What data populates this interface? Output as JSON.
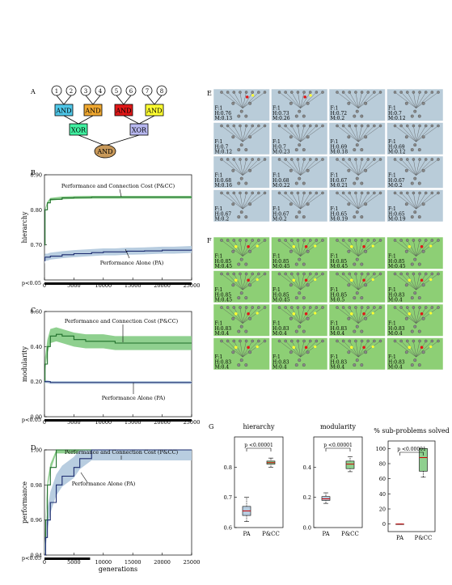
{
  "panels": {
    "A": "A",
    "B": "B",
    "C": "C",
    "D": "D",
    "E": "E",
    "F": "F",
    "G": "G"
  },
  "circuit": {
    "inputs": [
      "1",
      "2",
      "3",
      "4",
      "5",
      "6",
      "7",
      "8"
    ],
    "and_gates": [
      {
        "label": "AND",
        "color": "#4fc7e8"
      },
      {
        "label": "AND",
        "color": "#f0a830"
      },
      {
        "label": "AND",
        "color": "#e01818"
      },
      {
        "label": "AND",
        "color": "#ffff30"
      }
    ],
    "xor_gates": [
      {
        "label": "XOR",
        "color": "#40f0a0"
      },
      {
        "label": "XOR",
        "color": "#b8b8f0"
      }
    ],
    "top_gate": {
      "label": "AND",
      "color": "#c8995a"
    }
  },
  "pval_label": "p<0.05",
  "pval_label_d": "p<0.05",
  "chart_data": [
    {
      "panel": "B",
      "type": "line",
      "ylabel": "hierarchy",
      "ylim": [
        0.6,
        0.9
      ],
      "yticks": [
        "0.90",
        "0.80",
        "0.70"
      ],
      "x": [
        0,
        100,
        500,
        1000,
        3000,
        5000,
        8000,
        10000,
        12000,
        14000,
        15000,
        17000,
        20000,
        22000,
        25000
      ],
      "xticks": [
        "0",
        "5000",
        "10000",
        "15000",
        "20000",
        "25000"
      ],
      "series": [
        {
          "name": "Performance and Connection Cost (P&CC)",
          "color": "#1f6e2a",
          "band": "#8fd08f",
          "values": [
            0.7,
            0.8,
            0.82,
            0.83,
            0.834,
            0.835,
            0.836,
            0.836,
            0.836,
            0.836,
            0.836,
            0.836,
            0.836,
            0.836,
            0.836
          ]
        },
        {
          "name": "Performance Alone (PA)",
          "color": "#1a2a6e",
          "band": "#b8cde0",
          "values": [
            0.655,
            0.665,
            0.665,
            0.668,
            0.672,
            0.675,
            0.678,
            0.68,
            0.68,
            0.682,
            0.682,
            0.683,
            0.685,
            0.685,
            0.687
          ]
        }
      ]
    },
    {
      "panel": "C",
      "type": "line",
      "ylabel": "modularity",
      "ylim": [
        0.0,
        0.6
      ],
      "yticks": [
        "0.60",
        "0.40",
        "0.20",
        "0.00"
      ],
      "x": [
        0,
        100,
        500,
        1000,
        2000,
        3000,
        5000,
        7000,
        10000,
        12000,
        14000,
        15000,
        17000,
        20000,
        25000
      ],
      "xticks": [
        "0",
        "5000",
        "10000",
        "15000",
        "20000",
        "25000"
      ],
      "series": [
        {
          "name": "Performance and Connection Cost (P&CC)",
          "color": "#1f6e2a",
          "band": "#8fd08f",
          "values": [
            0.2,
            0.3,
            0.4,
            0.46,
            0.47,
            0.46,
            0.44,
            0.43,
            0.43,
            0.42,
            0.42,
            0.42,
            0.42,
            0.42,
            0.42
          ]
        },
        {
          "name": "Performance Alone (PA)",
          "color": "#1a2a6e",
          "band": "#b8cde0",
          "values": [
            0.2,
            0.2,
            0.2,
            0.195,
            0.195,
            0.195,
            0.195,
            0.195,
            0.195,
            0.195,
            0.195,
            0.195,
            0.195,
            0.195,
            0.195
          ]
        }
      ]
    },
    {
      "panel": "D",
      "type": "line",
      "xlabel": "generations",
      "ylabel": "performance",
      "ylim": [
        0.94,
        1.0
      ],
      "yticks": [
        "1.00",
        "0.98",
        "0.96",
        "0.94"
      ],
      "x": [
        0,
        200,
        500,
        1000,
        2000,
        3000,
        5000,
        6000,
        8000,
        10000,
        15000,
        20000,
        25000
      ],
      "xticks": [
        "0",
        "5000",
        "10000",
        "15000",
        "20000",
        "25000"
      ],
      "series": [
        {
          "name": "Performance and Connection Cost (P&CC)",
          "color": "#1f6e2a",
          "band": "#8fd08f",
          "values": [
            0.94,
            0.96,
            0.98,
            0.99,
            1.0,
            1.0,
            1.0,
            1.0,
            1.0,
            1.0,
            1.0,
            1.0,
            1.0
          ]
        },
        {
          "name": "Performance Alone (PA)",
          "color": "#1a2a6e",
          "band": "#b8cde0",
          "values": [
            0.94,
            0.95,
            0.96,
            0.97,
            0.98,
            0.985,
            0.99,
            0.995,
            1.0,
            1.0,
            1.0,
            1.0,
            1.0
          ]
        }
      ]
    },
    {
      "panel": "G-hierarchy",
      "type": "box",
      "title": "hierarchy",
      "categories": [
        "PA",
        "P&CC"
      ],
      "ylim": [
        0.6,
        0.9
      ],
      "yticks": [
        "0.8",
        "0.7",
        "0.6"
      ],
      "annotation": "p <0.00001",
      "stats": [
        {
          "median": 0.655,
          "q1": 0.64,
          "q3": 0.67,
          "min": 0.62,
          "max": 0.7
        },
        {
          "median": 0.815,
          "q1": 0.81,
          "q3": 0.82,
          "min": 0.8,
          "max": 0.83
        }
      ]
    },
    {
      "panel": "G-modularity",
      "type": "box",
      "title": "modularity",
      "categories": [
        "PA",
        "P&CC"
      ],
      "ylim": [
        0.0,
        0.6
      ],
      "yticks": [
        "0.4",
        "0.2",
        "0.0"
      ],
      "annotation": "p <0.00001",
      "stats": [
        {
          "median": 0.19,
          "q1": 0.18,
          "q3": 0.205,
          "min": 0.16,
          "max": 0.23
        },
        {
          "median": 0.42,
          "q1": 0.39,
          "q3": 0.44,
          "min": 0.37,
          "max": 0.47
        }
      ]
    },
    {
      "panel": "G-subproblems",
      "type": "box",
      "title": "% sub-problems solved",
      "categories": [
        "PA",
        "P&CC"
      ],
      "ylim": [
        -10,
        110
      ],
      "yticks": [
        "100",
        "80",
        "60",
        "40",
        "20",
        "0"
      ],
      "annotation": "p <0.00001",
      "stats": [
        {
          "median": 0,
          "q1": 0,
          "q3": 0,
          "min": 0,
          "max": 0
        },
        {
          "median": 88,
          "q1": 70,
          "q3": 100,
          "min": 62,
          "max": 100
        }
      ]
    }
  ],
  "grid_E": {
    "bg": "#b9ccd9",
    "cells": [
      [
        "F:1",
        "H:0.76",
        "M:0.13"
      ],
      [
        "F:1",
        "H:0.73",
        "M:0.26"
      ],
      [
        "F:1",
        "H:0.72",
        "M:0.2"
      ],
      [
        "F:1",
        "H:0.7",
        "M:0.12"
      ],
      [
        "F:1",
        "H:0.7",
        "M:0.12"
      ],
      [
        "F:1",
        "H:0.7",
        "M:0.23"
      ],
      [
        "F:1",
        "H:0.69",
        "M:0.18"
      ],
      [
        "F:1",
        "H:0.69",
        "M:0.12"
      ],
      [
        "F:1",
        "H:0.68",
        "M:0.16"
      ],
      [
        "F:1",
        "H:0.68",
        "M:0.22"
      ],
      [
        "F:1",
        "H:0.67",
        "M:0.21"
      ],
      [
        "F:1",
        "H:0.67",
        "M:0.2"
      ],
      [
        "F:1",
        "H:0.67",
        "M:0.2"
      ],
      [
        "F:1",
        "H:0.67",
        "M:0.2"
      ],
      [
        "F:1",
        "H:0.65",
        "M:0.19"
      ],
      [
        "F:1",
        "H:0.65",
        "M:0.19"
      ]
    ]
  },
  "grid_F": {
    "bg": "#8dcf75",
    "cells": [
      [
        "F:1",
        "H:0.85",
        "M:0.45"
      ],
      [
        "F:1",
        "H:0.85",
        "M:0.45"
      ],
      [
        "F:1",
        "H:0.85",
        "M:0.45"
      ],
      [
        "F:1",
        "H:0.85",
        "M:0.45"
      ],
      [
        "F:1",
        "H:0.85",
        "M:0.45"
      ],
      [
        "F:1",
        "H:0.85",
        "M:0.45"
      ],
      [
        "F:1",
        "H:0.85",
        "M:0.5"
      ],
      [
        "F:1",
        "H:0.83",
        "M:0.4"
      ],
      [
        "F:1",
        "H:0.83",
        "M:0.4"
      ],
      [
        "F:1",
        "H:0.83",
        "M:0.4"
      ],
      [
        "F:1",
        "H:0.83",
        "M:0.4"
      ],
      [
        "F:1",
        "H:0.83",
        "M:0.4"
      ],
      [
        "F:1",
        "H:0.83",
        "M:0.4"
      ],
      [
        "F:1",
        "H:0.83",
        "M:0.4"
      ],
      [
        "F:1",
        "H:0.83",
        "M:0.4"
      ],
      [
        "F:1",
        "H:0.83",
        "M:0.4"
      ]
    ]
  }
}
